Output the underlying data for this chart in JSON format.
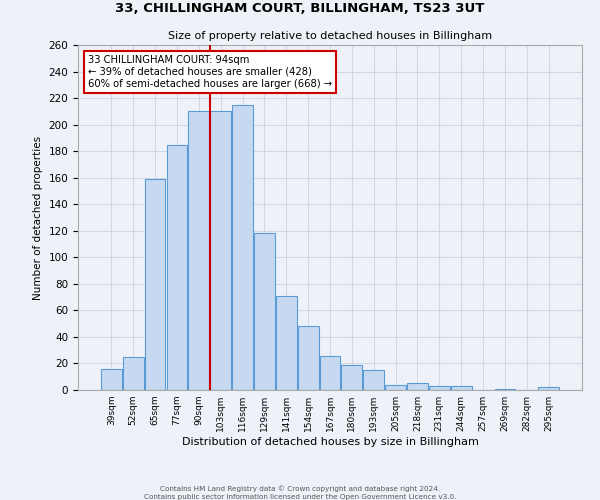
{
  "title": "33, CHILLINGHAM COURT, BILLINGHAM, TS23 3UT",
  "subtitle": "Size of property relative to detached houses in Billingham",
  "xlabel": "Distribution of detached houses by size in Billingham",
  "ylabel": "Number of detached properties",
  "bar_color": "#c6d9f0",
  "bar_edge_color": "#5b9bd5",
  "categories": [
    "39sqm",
    "52sqm",
    "65sqm",
    "77sqm",
    "90sqm",
    "103sqm",
    "116sqm",
    "129sqm",
    "141sqm",
    "154sqm",
    "167sqm",
    "180sqm",
    "193sqm",
    "205sqm",
    "218sqm",
    "231sqm",
    "244sqm",
    "257sqm",
    "269sqm",
    "282sqm",
    "295sqm"
  ],
  "values": [
    16,
    25,
    159,
    185,
    210,
    210,
    215,
    118,
    71,
    48,
    26,
    19,
    15,
    4,
    5,
    3,
    3,
    0,
    1,
    0,
    2
  ],
  "ylim": [
    0,
    260
  ],
  "yticks": [
    0,
    20,
    40,
    60,
    80,
    100,
    120,
    140,
    160,
    180,
    200,
    220,
    240,
    260
  ],
  "property_line_x": 4.5,
  "annotation_title": "33 CHILLINGHAM COURT: 94sqm",
  "annotation_line1": "← 39% of detached houses are smaller (428)",
  "annotation_line2": "60% of semi-detached houses are larger (668) →",
  "annotation_box_color": "#ffffff",
  "annotation_box_edge": "#cc0000",
  "vline_color": "#cc0000",
  "grid_color": "#d0d8e8",
  "background_color": "#eef2f8",
  "footer_line1": "Contains HM Land Registry data © Crown copyright and database right 2024.",
  "footer_line2": "Contains public sector information licensed under the Open Government Licence v3.0."
}
